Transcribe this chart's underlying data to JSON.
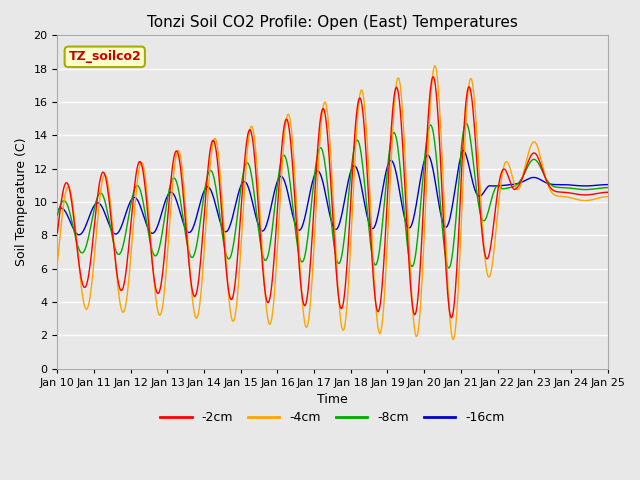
{
  "title": "Tonzi Soil CO2 Profile: Open (East) Temperatures",
  "xlabel": "Time",
  "ylabel": "Soil Temperature (C)",
  "ylim": [
    0,
    20
  ],
  "x_tick_labels": [
    "Jan 10",
    "Jan 11",
    "Jan 12",
    "Jan 13",
    "Jan 14",
    "Jan 15",
    "Jan 16",
    "Jan 17",
    "Jan 18",
    "Jan 19",
    "Jan 20",
    "Jan 21",
    "Jan 22",
    "Jan 23",
    "Jan 24",
    "Jan 25"
  ],
  "series_colors": {
    "-2cm": "#ff0000",
    "-4cm": "#ffa500",
    "-8cm": "#00aa00",
    "-16cm": "#0000cc"
  },
  "series_labels": [
    "-2cm",
    "-4cm",
    "-8cm",
    "-16cm"
  ],
  "legend_label": "TZ_soilco2",
  "legend_bg": "#ffffcc",
  "legend_border": "#aaaa00",
  "bg_color": "#e8e8e8",
  "grid_color": "#ffffff",
  "title_fontsize": 11,
  "axis_label_fontsize": 9,
  "tick_fontsize": 8
}
